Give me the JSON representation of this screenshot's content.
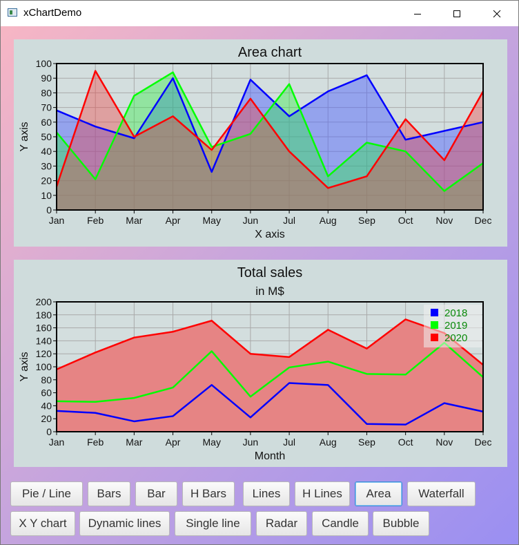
{
  "window": {
    "title": "xChartDemo",
    "icon": "app-window-icon",
    "controls": [
      "minimize-icon",
      "maximize-icon",
      "close-icon"
    ]
  },
  "buttons": {
    "row1": [
      "Pie / Line",
      "Bars",
      "Bar",
      "H Bars",
      "Lines",
      "H Lines",
      "Area",
      "Waterfall"
    ],
    "row2": [
      "X Y chart",
      "Dynamic lines",
      "Single line",
      "Radar",
      "Candle",
      "Bubble"
    ],
    "active": "Area"
  },
  "chart_data": [
    {
      "type": "area",
      "title": "Area chart",
      "subtitle": "",
      "xlabel": "X axis",
      "ylabel": "Y axis",
      "categories": [
        "Jan",
        "Feb",
        "Mar",
        "Apr",
        "May",
        "Jun",
        "Jul",
        "Aug",
        "Sep",
        "Oct",
        "Nov",
        "Dec"
      ],
      "ylim": [
        0,
        100
      ],
      "yticks": [
        0,
        10,
        20,
        30,
        40,
        50,
        60,
        70,
        80,
        90,
        100
      ],
      "grid": true,
      "legend": "none",
      "series": [
        {
          "color": "#0000ff",
          "fill": "rgba(70,90,255,0.45)",
          "values": [
            68,
            57,
            49,
            90,
            26,
            89,
            64,
            81,
            92,
            48,
            54,
            60
          ]
        },
        {
          "color": "#00ff00",
          "fill": "rgba(40,240,60,0.38)",
          "values": [
            53,
            21,
            78,
            94,
            43,
            52,
            86,
            23,
            46,
            40,
            13,
            32
          ]
        },
        {
          "color": "#ff0000",
          "fill": "rgba(240,60,60,0.38)",
          "values": [
            16,
            95,
            50,
            64,
            41,
            76,
            40,
            15,
            23,
            62,
            34,
            81
          ]
        }
      ]
    },
    {
      "type": "area",
      "title": "Total sales",
      "subtitle": "in M$",
      "xlabel": "Month",
      "ylabel": "Y axis",
      "categories": [
        "Jan",
        "Feb",
        "Mar",
        "Apr",
        "May",
        "Jun",
        "Jul",
        "Aug",
        "Sep",
        "Oct",
        "Nov",
        "Dec"
      ],
      "ylim": [
        0,
        200
      ],
      "yticks": [
        0,
        20,
        40,
        60,
        80,
        100,
        120,
        140,
        160,
        180,
        200
      ],
      "grid": true,
      "legend": "top-right",
      "series": [
        {
          "name": "2018",
          "color": "#0000ff",
          "fill": "rgba(80,90,240,0.85)",
          "values": [
            32,
            29,
            16,
            24,
            72,
            22,
            75,
            72,
            12,
            11,
            44,
            31
          ]
        },
        {
          "name": "2019",
          "color": "#00ff00",
          "fill": "rgba(140,232,140,1)",
          "values": [
            47,
            46,
            52,
            68,
            124,
            54,
            99,
            108,
            89,
            88,
            137,
            84
          ]
        },
        {
          "name": "2020",
          "color": "#ff0000",
          "fill": "rgba(230,132,132,1)",
          "values": [
            96,
            122,
            145,
            154,
            171,
            120,
            115,
            157,
            128,
            173,
            152,
            103
          ]
        }
      ]
    }
  ]
}
